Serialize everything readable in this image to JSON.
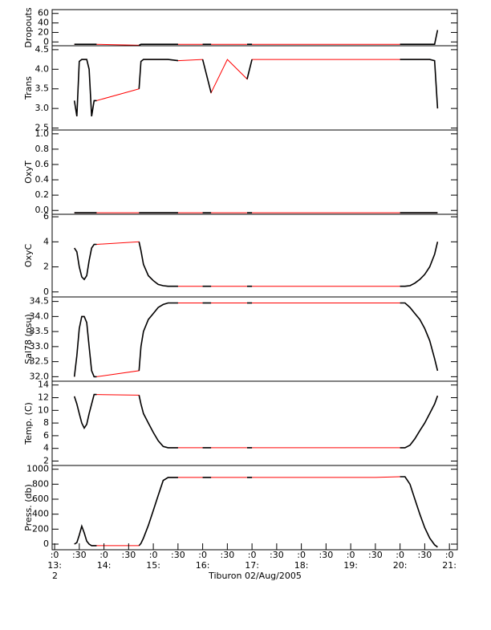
{
  "chart_data": {
    "type": "line",
    "x": [
      13.4,
      13.45,
      13.5,
      13.55,
      13.6,
      13.65,
      13.7,
      13.75,
      13.8,
      13.85,
      14.71,
      14.75,
      14.8,
      14.9,
      15.0,
      15.1,
      15.2,
      15.3,
      15.5,
      16.0,
      16.17,
      16.5,
      16.9,
      17.0,
      17.5,
      18.0,
      18.5,
      19.0,
      19.5,
      20.0,
      20.1,
      20.2,
      20.3,
      20.4,
      20.5,
      20.6,
      20.7,
      20.76
    ],
    "xlim": [
      12.95,
      21.16
    ],
    "xticks": [
      {
        "value": 13.0,
        "label": ":0"
      },
      {
        "value": 13.5,
        "label": ":30"
      },
      {
        "value": 14.0,
        "label": ":0"
      },
      {
        "value": 14.5,
        "label": ":30"
      },
      {
        "value": 15.0,
        "label": ":0"
      },
      {
        "value": 15.5,
        "label": ":30"
      },
      {
        "value": 16.0,
        "label": ":0"
      },
      {
        "value": 16.5,
        "label": ":30"
      },
      {
        "value": 17.0,
        "label": ":0"
      },
      {
        "value": 17.5,
        "label": ":30"
      },
      {
        "value": 18.0,
        "label": ":0"
      },
      {
        "value": 18.5,
        "label": ":30"
      },
      {
        "value": 19.0,
        "label": ":0"
      },
      {
        "value": 19.5,
        "label": ":30"
      },
      {
        "value": 20.0,
        "label": ":0"
      },
      {
        "value": 20.5,
        "label": ":30"
      },
      {
        "value": 21.0,
        "label": ":0"
      }
    ],
    "xticks_hour": [
      {
        "value": 13,
        "label": "13:"
      },
      {
        "value": 14,
        "label": "14:"
      },
      {
        "value": 15,
        "label": "15:"
      },
      {
        "value": 16,
        "label": "16:"
      },
      {
        "value": 17,
        "label": "17:"
      },
      {
        "value": 18,
        "label": "18:"
      },
      {
        "value": 19,
        "label": "19:"
      },
      {
        "value": 20,
        "label": "20:"
      },
      {
        "value": 21,
        "label": "21:"
      }
    ],
    "day": "2",
    "xlabel": "Tiburon 02/Aug/2005",
    "color": "#000000",
    "gap_color": "#ff0000",
    "panels": [
      {
        "ylabel": "Dropouts",
        "ylim": [
          -8,
          68
        ],
        "yticks": [
          0,
          20,
          40,
          60
        ],
        "values": [
          -5,
          -5,
          -5,
          -5,
          -5,
          -5,
          -5,
          -5,
          -5,
          -5,
          -7,
          -5,
          -5,
          -5,
          -5,
          -5,
          -5,
          -5,
          -5,
          -5,
          -5,
          -5,
          -5,
          -5,
          -5,
          -5,
          -5,
          -5,
          -5,
          -5,
          -5,
          -5,
          -5,
          -5,
          -5,
          -5,
          -5,
          25
        ]
      },
      {
        "ylabel": "Trans",
        "ylim": [
          2.45,
          4.6
        ],
        "yticks": [
          2.5,
          {
            "value": 3,
            "label": "3.0"
          },
          3.5,
          {
            "value": 4,
            "label": "4.0"
          },
          4.5
        ],
        "values": [
          3.2,
          2.8,
          4.2,
          4.25,
          4.25,
          4.25,
          4.0,
          2.8,
          3.2,
          3.2,
          3.5,
          4.2,
          4.25,
          4.25,
          4.25,
          4.25,
          4.25,
          4.25,
          4.22,
          4.25,
          3.4,
          4.25,
          3.75,
          4.25,
          4.25,
          4.25,
          4.25,
          4.25,
          4.25,
          4.25,
          4.25,
          4.25,
          4.25,
          4.25,
          4.25,
          4.25,
          4.22,
          3.0
        ]
      },
      {
        "ylabel": "OxyT",
        "ylim": [
          -0.05,
          1.05
        ],
        "yticks": [
          {
            "value": 0,
            "label": "0.0"
          },
          0.2,
          0.4,
          0.6,
          0.8,
          {
            "value": 1,
            "label": "1.0"
          }
        ],
        "values": [
          -0.03,
          -0.03,
          -0.03,
          -0.03,
          -0.03,
          -0.03,
          -0.03,
          -0.03,
          -0.03,
          -0.03,
          -0.03,
          -0.03,
          -0.03,
          -0.03,
          -0.03,
          -0.03,
          -0.03,
          -0.03,
          -0.03,
          -0.03,
          -0.03,
          -0.03,
          -0.03,
          -0.03,
          -0.03,
          -0.03,
          -0.03,
          -0.03,
          -0.03,
          -0.03,
          -0.03,
          -0.03,
          -0.03,
          -0.03,
          -0.03,
          -0.03,
          -0.03,
          -0.03
        ]
      },
      {
        "ylabel": "OxyC",
        "ylim": [
          -0.4,
          6.2
        ],
        "yticks": [
          0,
          2,
          4,
          6
        ],
        "values": [
          3.5,
          3.2,
          2.0,
          1.2,
          1.0,
          1.3,
          2.5,
          3.5,
          3.8,
          3.8,
          4.0,
          3.3,
          2.2,
          1.3,
          0.9,
          0.6,
          0.5,
          0.45,
          0.45,
          0.45,
          0.45,
          0.45,
          0.45,
          0.45,
          0.45,
          0.45,
          0.45,
          0.45,
          0.45,
          0.45,
          0.45,
          0.5,
          0.7,
          1.0,
          1.4,
          2.0,
          3.0,
          4.0
        ]
      },
      {
        "ylabel": "Sal78 (psu)",
        "ylim": [
          31.85,
          34.65
        ],
        "yticks": [
          {
            "value": 32,
            "label": "32.0"
          },
          32.5,
          {
            "value": 33,
            "label": "33.0"
          },
          33.5,
          {
            "value": 34,
            "label": "34.0"
          },
          34.5
        ],
        "values": [
          32.0,
          32.7,
          33.6,
          34.0,
          34.0,
          33.8,
          33.0,
          32.2,
          32.0,
          32.0,
          32.2,
          33.0,
          33.5,
          33.9,
          34.1,
          34.3,
          34.4,
          34.45,
          34.45,
          34.45,
          34.45,
          34.45,
          34.45,
          34.45,
          34.45,
          34.45,
          34.45,
          34.45,
          34.45,
          34.45,
          34.45,
          34.3,
          34.1,
          33.9,
          33.6,
          33.2,
          32.6,
          32.2
        ]
      },
      {
        "ylabel": "Temp. (C)",
        "ylim": [
          1.3,
          14.6
        ],
        "yticks": [
          2,
          4,
          6,
          8,
          10,
          12,
          14
        ],
        "values": [
          12.2,
          11,
          9.5,
          8,
          7.2,
          7.8,
          9.5,
          11,
          12.5,
          12.5,
          12.4,
          11,
          9.5,
          8,
          6.5,
          5.2,
          4.3,
          4.1,
          4.1,
          4.1,
          4.1,
          4.1,
          4.1,
          4.1,
          4.1,
          4.1,
          4.1,
          4.1,
          4.1,
          4.1,
          4.1,
          4.5,
          5.5,
          6.8,
          8,
          9.5,
          11,
          12.3
        ]
      },
      {
        "ylabel": "Press. (db)",
        "ylim": [
          -75,
          1050
        ],
        "yticks": [
          0,
          200,
          400,
          600,
          800,
          1000
        ],
        "values": [
          0,
          20,
          120,
          240,
          150,
          40,
          0,
          -20,
          -20,
          -20,
          -20,
          10,
          80,
          250,
          450,
          650,
          850,
          890,
          890,
          890,
          890,
          890,
          890,
          890,
          890,
          890,
          890,
          890,
          890,
          900,
          900,
          800,
          600,
          400,
          220,
          80,
          -10,
          -40
        ]
      }
    ]
  }
}
